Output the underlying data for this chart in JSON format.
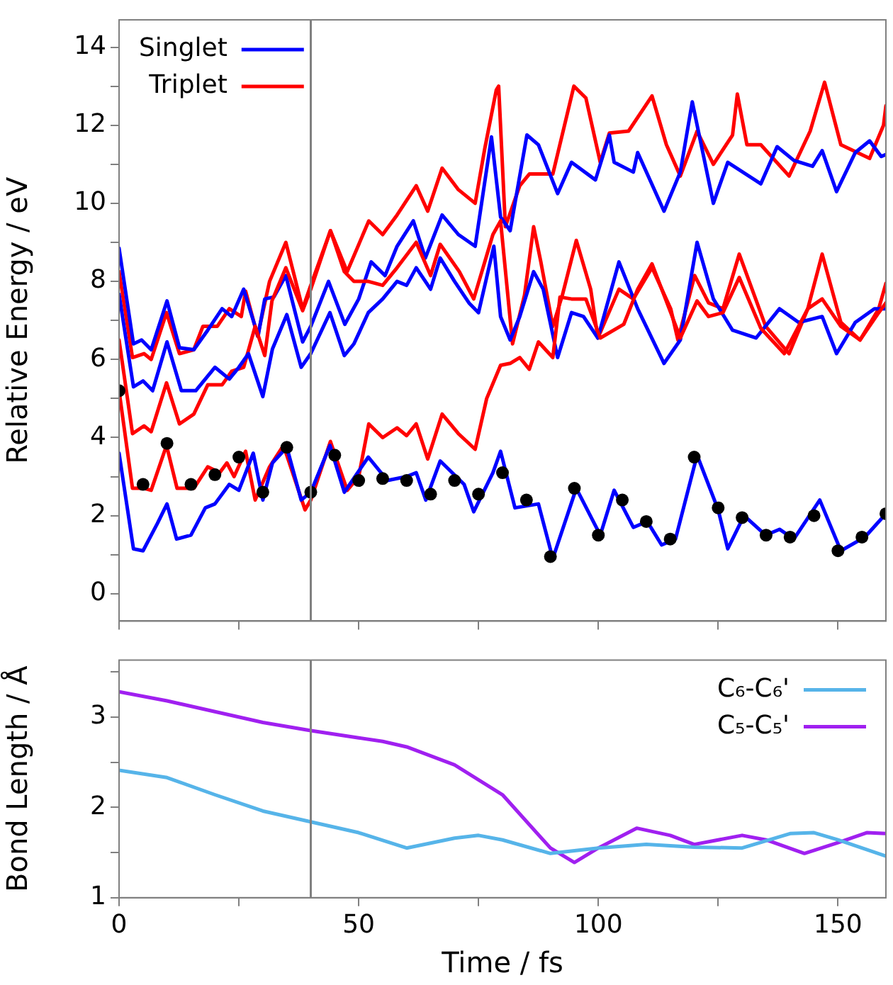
{
  "chart_data": [
    {
      "type": "line",
      "ylabel": "Relative Energy / eV",
      "xlim": [
        0,
        160
      ],
      "ylim": [
        -0.7,
        14.7
      ],
      "xticks": [
        0,
        {
          "value": 25,
          "label": null
        },
        50,
        {
          "value": 75,
          "label": null
        },
        100,
        {
          "value": 125,
          "label": null
        },
        150
      ],
      "yticks": [
        0,
        {
          "value": 1,
          "label": null
        },
        2,
        {
          "value": 3,
          "label": null
        },
        4,
        {
          "value": 5,
          "label": null
        },
        6,
        {
          "value": 7,
          "label": null
        },
        8,
        {
          "value": 9,
          "label": null
        },
        10,
        {
          "value": 11,
          "label": null
        },
        12,
        {
          "value": 13,
          "label": null
        },
        14
      ],
      "tick_labels": "y",
      "grid": false,
      "legend": "top left",
      "marker": "none",
      "line_style": "solid",
      "ref_lines": [
        {
          "axis": "x",
          "value": 40,
          "color": "#808080"
        }
      ],
      "series": [
        {
          "name": "Singlet",
          "color": "#0000ff",
          "x": [
            0,
            3,
            5,
            8,
            10,
            12,
            15,
            18,
            20,
            23,
            25,
            28,
            30,
            32,
            35,
            38,
            40,
            44,
            47,
            52,
            56,
            60,
            62,
            64,
            67,
            72,
            74,
            78,
            79.6,
            82.6,
            87.5,
            90.5,
            95.4,
            100.4,
            103.3,
            107.3,
            110.2,
            113.2,
            116.1,
            120.6,
            125,
            127,
            130.4,
            134.9,
            137.8,
            140.8,
            146.2,
            150.6,
            155.6,
            160
          ],
          "values": [
            3.6,
            1.15,
            1.1,
            1.8,
            2.3,
            1.4,
            1.5,
            2.2,
            2.3,
            2.8,
            2.65,
            3.6,
            2.4,
            3.35,
            3.75,
            2.4,
            2.6,
            3.8,
            2.6,
            3.5,
            2.9,
            3.0,
            3.1,
            2.4,
            3.4,
            2.8,
            2.1,
            3.1,
            3.65,
            2.2,
            2.3,
            0.9,
            2.7,
            1.5,
            2.65,
            1.7,
            1.85,
            1.25,
            1.4,
            3.55,
            2.15,
            1.15,
            2.0,
            1.5,
            1.65,
            1.4,
            2.4,
            1.1,
            1.45,
            2.05
          ]
        },
        {
          "name": "Triplet",
          "color": "#ff0000",
          "x": [
            0,
            2.8,
            5.2,
            6.7,
            9.9,
            12.1,
            15.6,
            18.5,
            21,
            22.5,
            24,
            26.4,
            28.4,
            31.4,
            34.3,
            38.8,
            40,
            44.1,
            47.6,
            50,
            52.1,
            55,
            58,
            60,
            62,
            64.4,
            67.4,
            70.8,
            74.3,
            76.7,
            79.6,
            81.6,
            83.6,
            85.6,
            87.5,
            90.5,
            92,
            94.4,
            97.4,
            100.4,
            105.3,
            108.2,
            111.2,
            115.1,
            117.1,
            120.6,
            123,
            126,
            129.4,
            133.9,
            138.8,
            143.7,
            146.7,
            150.6,
            154.6,
            158.5,
            160
          ],
          "values": [
            5.2,
            2.7,
            2.7,
            2.65,
            3.8,
            2.7,
            2.7,
            3.25,
            3.1,
            3.35,
            3.0,
            3.65,
            2.4,
            3.25,
            3.8,
            2.15,
            2.4,
            3.9,
            2.65,
            3.0,
            4.35,
            4.0,
            4.25,
            4.05,
            4.35,
            3.45,
            4.6,
            4.1,
            3.7,
            5.0,
            5.85,
            5.9,
            6.05,
            5.75,
            6.45,
            6.05,
            7.6,
            7.55,
            7.55,
            6.55,
            6.9,
            7.8,
            8.45,
            7.2,
            6.55,
            7.5,
            7.1,
            7.2,
            8.1,
            6.8,
            6.15,
            7.3,
            7.55,
            6.85,
            6.5,
            7.2,
            7.45
          ]
        },
        {
          "color": "#0000ff",
          "x": [
            0,
            3,
            5,
            7,
            10,
            13,
            16,
            20,
            23,
            25,
            27,
            30,
            32,
            35,
            38,
            40,
            44,
            47,
            49,
            52,
            55,
            58,
            60,
            62,
            65,
            67,
            70,
            73,
            75,
            78.2,
            79.6,
            81.6,
            83.6,
            86.5,
            88.5,
            91.5,
            94.4,
            96.9,
            99.9,
            104.3,
            108.2,
            113.7,
            117.1,
            120.6,
            124,
            128,
            132.9,
            137.8,
            141.8,
            146.7,
            149.7,
            153.6,
            157.6,
            160
          ],
          "values": [
            7.67,
            5.3,
            5.45,
            5.2,
            6.45,
            5.2,
            5.2,
            5.8,
            5.5,
            5.8,
            6.15,
            5.05,
            6.27,
            7.15,
            5.8,
            6.15,
            7.2,
            6.1,
            6.4,
            7.2,
            7.55,
            8.0,
            7.9,
            8.35,
            7.8,
            8.6,
            8.0,
            7.45,
            7.2,
            8.9,
            7.1,
            6.5,
            7.1,
            8.25,
            7.8,
            6.05,
            7.2,
            7.1,
            6.55,
            8.5,
            7.3,
            5.9,
            6.5,
            9.0,
            7.55,
            6.75,
            6.55,
            7.3,
            6.95,
            7.1,
            6.15,
            6.95,
            7.3,
            7.3
          ]
        },
        {
          "color": "#ff0000",
          "x": [
            0,
            2.8,
            5.2,
            6.7,
            9.9,
            12.6,
            15.6,
            18.5,
            21.5,
            23.5,
            26,
            28.4,
            30.4,
            31.9,
            34.8,
            38.3,
            40,
            44.1,
            47,
            49,
            52,
            55,
            58,
            62,
            65,
            67,
            71,
            74,
            78,
            79.6,
            82.1,
            84.6,
            86.5,
            88,
            90.5,
            92.5,
            95.4,
            98.4,
            99.9,
            104.3,
            107.3,
            111.2,
            115.1,
            116.6,
            120.1,
            123,
            126,
            129.4,
            134.9,
            139.8,
            143.7,
            146.7,
            150.6,
            154.6,
            158.5,
            160
          ],
          "values": [
            6.5,
            4.1,
            4.3,
            4.15,
            5.4,
            4.35,
            4.6,
            5.35,
            5.35,
            5.7,
            5.8,
            6.85,
            6.1,
            7.5,
            8.35,
            7.25,
            7.8,
            9.3,
            8.25,
            8.0,
            8.0,
            7.9,
            8.35,
            9.0,
            8.15,
            8.95,
            8.25,
            7.55,
            9.2,
            9.55,
            6.4,
            7.65,
            9.4,
            8.5,
            6.85,
            7.65,
            9.05,
            7.8,
            6.55,
            7.8,
            7.55,
            8.35,
            7.3,
            6.5,
            8.15,
            7.45,
            7.3,
            8.7,
            6.85,
            6.15,
            7.3,
            8.7,
            6.95,
            6.5,
            7.3,
            7.95
          ]
        },
        {
          "color": "#0000ff",
          "x": [
            0,
            3,
            4.7,
            6.7,
            10,
            12.6,
            15.6,
            18.5,
            21.5,
            23.5,
            26,
            29,
            30.4,
            32.3,
            34.8,
            38.3,
            40,
            43.7,
            47.1,
            50,
            52.6,
            55.5,
            58,
            61.4,
            63.9,
            67.4,
            70.8,
            74.3,
            77.7,
            79.6,
            81.6,
            85.1,
            87.5,
            91.5,
            94.4,
            99.4,
            102.3,
            103.3,
            107.3,
            108.2,
            113.7,
            117.1,
            119.6,
            124,
            127,
            133.9,
            137.3,
            140.8,
            144.7,
            146.7,
            149.7,
            153.6,
            156.6,
            159,
            160
          ],
          "values": [
            8.85,
            6.4,
            6.5,
            6.25,
            7.5,
            6.3,
            6.25,
            6.75,
            7.3,
            7.1,
            7.8,
            6.6,
            7.55,
            7.6,
            8.15,
            6.45,
            6.85,
            8.0,
            6.9,
            7.55,
            8.5,
            8.15,
            8.9,
            9.55,
            8.6,
            9.7,
            9.2,
            8.9,
            11.7,
            9.65,
            9.3,
            11.75,
            11.5,
            10.25,
            11.05,
            10.6,
            11.75,
            11.05,
            10.8,
            11.3,
            9.8,
            10.8,
            12.6,
            10.0,
            11.05,
            10.5,
            11.45,
            11.1,
            10.95,
            11.35,
            10.3,
            11.3,
            11.6,
            11.2,
            11.25
          ]
        },
        {
          "color": "#ff0000",
          "x": [
            0,
            2.8,
            5.2,
            6.7,
            9.9,
            12.6,
            15.6,
            17.5,
            20.5,
            23,
            25.5,
            26.4,
            28.9,
            31.4,
            34.8,
            38.3,
            40,
            44.1,
            47.6,
            52.1,
            55,
            58,
            62,
            64.4,
            67.4,
            70.8,
            74.3,
            76.3,
            78.7,
            79.2,
            80.6,
            83.6,
            85.6,
            90.5,
            94.9,
            97.4,
            100.4,
            102.3,
            106.3,
            111.2,
            114.2,
            117.1,
            120.6,
            124,
            128,
            129,
            131,
            133.9,
            139.8,
            144.2,
            147.2,
            150.6,
            156.6,
            159.5,
            160
          ],
          "values": [
            8.25,
            6.05,
            6.15,
            6.0,
            7.2,
            6.15,
            6.25,
            6.85,
            6.85,
            7.3,
            7.1,
            7.75,
            6.6,
            8.0,
            9.0,
            7.3,
            7.9,
            9.3,
            8.25,
            9.55,
            9.2,
            9.7,
            10.45,
            9.8,
            10.9,
            10.35,
            10.0,
            11.4,
            12.9,
            13.0,
            9.4,
            10.45,
            10.75,
            10.75,
            13.0,
            12.7,
            11.05,
            11.8,
            11.85,
            12.75,
            11.5,
            10.7,
            11.85,
            11.0,
            11.75,
            12.8,
            11.5,
            11.5,
            10.7,
            11.85,
            13.1,
            11.5,
            11.15,
            12.0,
            12.5
          ]
        },
        {
          "type": "scatter",
          "color": "#000000",
          "marker": "circle",
          "x": [
            0,
            5,
            10,
            15,
            20,
            25,
            30,
            35,
            40,
            45,
            50,
            55,
            60,
            65,
            70,
            75,
            80,
            85,
            90,
            95,
            100,
            105,
            110,
            115,
            120,
            125,
            130,
            135,
            140,
            145,
            150,
            155,
            160
          ],
          "values": [
            5.2,
            2.8,
            3.85,
            2.8,
            3.05,
            3.5,
            2.6,
            3.75,
            2.6,
            3.55,
            2.9,
            2.95,
            2.9,
            2.55,
            2.9,
            2.55,
            3.1,
            2.4,
            0.95,
            2.7,
            1.5,
            2.4,
            1.85,
            1.4,
            3.5,
            2.2,
            1.95,
            1.5,
            1.45,
            2.0,
            1.1,
            1.45,
            2.05
          ]
        }
      ]
    },
    {
      "type": "line",
      "xlabel": "Time / fs",
      "ylabel": "Bond Length / Å",
      "xlim": [
        0,
        160
      ],
      "ylim": [
        1,
        3.63
      ],
      "xticks": [
        0,
        {
          "value": 25,
          "label": null
        },
        50,
        {
          "value": 75,
          "label": null
        },
        100,
        {
          "value": 125,
          "label": null
        },
        150
      ],
      "yticks": [
        1,
        {
          "value": 1.5,
          "label": null
        },
        2,
        {
          "value": 2.5,
          "label": null
        },
        3,
        {
          "value": 3.5,
          "label": null
        }
      ],
      "grid": false,
      "legend": "top right",
      "marker": "none",
      "line_style": "solid",
      "ref_lines": [
        {
          "axis": "x",
          "value": 40,
          "color": "#808080"
        }
      ],
      "series": [
        {
          "name": "C₆-C₆'",
          "color": "#56b4e9",
          "x": [
            0,
            10,
            20,
            30,
            40,
            50,
            60,
            70,
            75,
            80,
            90,
            100,
            110,
            120,
            130,
            140,
            145,
            150,
            160
          ],
          "values": [
            2.41,
            2.33,
            2.14,
            1.96,
            1.84,
            1.72,
            1.55,
            1.66,
            1.69,
            1.64,
            1.49,
            1.55,
            1.59,
            1.56,
            1.55,
            1.71,
            1.72,
            1.64,
            1.46
          ]
        },
        {
          "name": "C₅-C₅'",
          "color": "#a020f0",
          "x": [
            0,
            10,
            20,
            30,
            40,
            50,
            55,
            60,
            70,
            80,
            90,
            95,
            100,
            108,
            115,
            120,
            130,
            135,
            143,
            150,
            156,
            160
          ],
          "values": [
            3.28,
            3.18,
            3.06,
            2.94,
            2.85,
            2.77,
            2.73,
            2.67,
            2.47,
            2.14,
            1.55,
            1.39,
            1.55,
            1.77,
            1.69,
            1.59,
            1.69,
            1.64,
            1.49,
            1.61,
            1.72,
            1.71
          ]
        }
      ]
    }
  ]
}
